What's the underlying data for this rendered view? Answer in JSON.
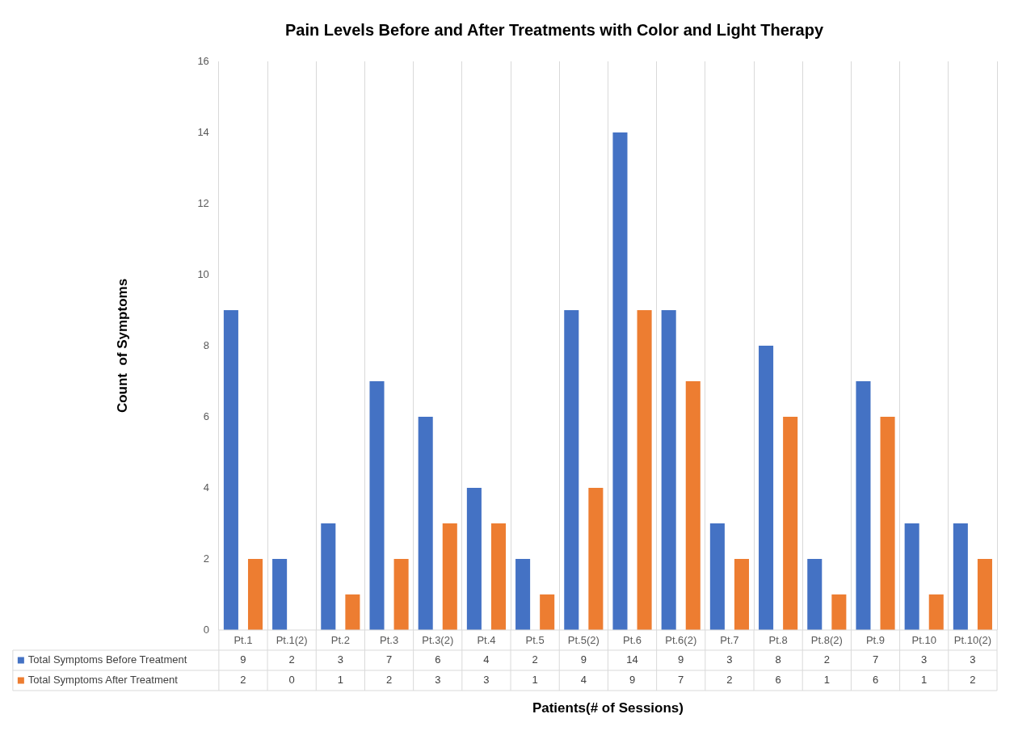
{
  "chart_data": {
    "type": "bar",
    "title": "Pain Levels Before and After Treatments with Color and Light Therapy",
    "xlabel": "Patients(# of Sessions)",
    "ylabel": "Count  of Symptoms",
    "categories": [
      "Pt.1",
      "Pt.1(2)",
      "Pt.2",
      "Pt.3",
      "Pt.3(2)",
      "Pt.4",
      "Pt.5",
      "Pt.5(2)",
      "Pt.6",
      "Pt.6(2)",
      "Pt.7",
      "Pt.8",
      "Pt.8(2)",
      "Pt.9",
      "Pt.10",
      "Pt.10(2)"
    ],
    "series": [
      {
        "name": "Total Symptoms Before Treatment",
        "color": "#4472c4",
        "values": [
          9,
          2,
          3,
          7,
          6,
          4,
          2,
          9,
          14,
          9,
          3,
          8,
          2,
          7,
          3,
          3
        ]
      },
      {
        "name": "Total Symptoms After Treatment",
        "color": "#ed7d31",
        "values": [
          2,
          0,
          1,
          2,
          3,
          3,
          1,
          4,
          9,
          7,
          2,
          6,
          1,
          6,
          1,
          2
        ]
      }
    ],
    "ylim": [
      0,
      16
    ],
    "yticks": [
      0,
      2,
      4,
      6,
      8,
      10,
      12,
      14,
      16
    ],
    "grid": "x",
    "legend": "bottom",
    "data_labels": true
  }
}
